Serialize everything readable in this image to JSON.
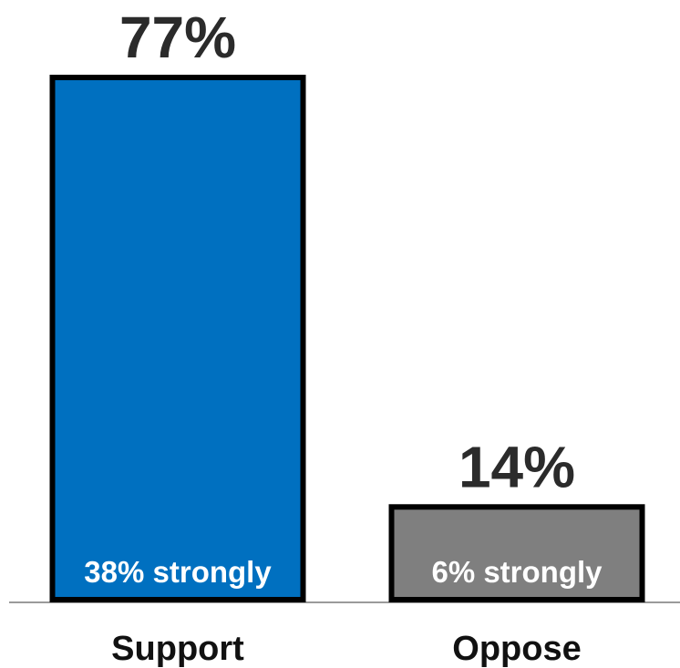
{
  "chart_data": {
    "type": "bar",
    "categories": [
      "Support",
      "Oppose"
    ],
    "values": [
      77,
      14
    ],
    "value_labels": [
      "77%",
      "14%"
    ],
    "inner_labels": [
      "38% strongly",
      "6% strongly"
    ],
    "strongly_values": [
      38,
      6
    ],
    "ylim": [
      0,
      100
    ],
    "grid": false,
    "legend": "none",
    "colors": [
      "#0070c0",
      "#7f7f7f"
    ],
    "bar_outline_color": "#000000",
    "baseline_color": "#9a9a9a"
  }
}
